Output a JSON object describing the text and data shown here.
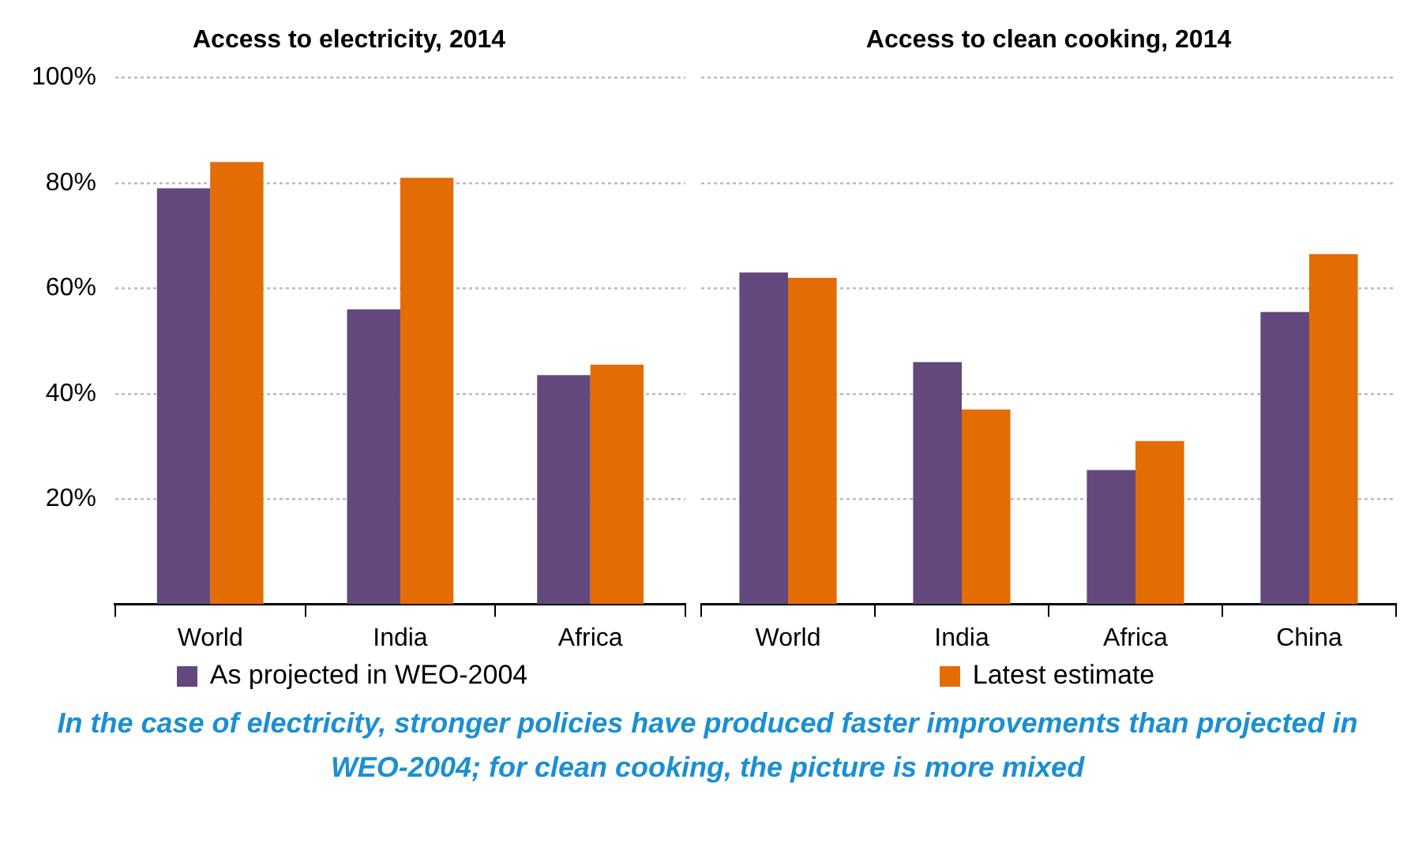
{
  "chart_data": [
    {
      "type": "bar",
      "title": "Access to electricity, 2014",
      "categories": [
        "World",
        "India",
        "Africa"
      ],
      "series": [
        {
          "name": "As projected in WEO-2004",
          "color": "#62487c",
          "values": [
            79,
            56,
            43.5
          ]
        },
        {
          "name": "Latest estimate",
          "color": "#e36c04",
          "values": [
            84,
            81,
            45.5
          ]
        }
      ],
      "ylim": [
        0,
        100
      ],
      "yticks": [
        {
          "value": 20,
          "label": "20%"
        },
        {
          "value": 40,
          "label": "40%"
        },
        {
          "value": 60,
          "label": "60%"
        },
        {
          "value": 80,
          "label": "80%"
        },
        {
          "value": 100,
          "label": "100%"
        }
      ],
      "grid": "y",
      "legend": "bottom"
    },
    {
      "type": "bar",
      "title": "Access to clean cooking, 2014",
      "categories": [
        "World",
        "India",
        "Africa",
        "China"
      ],
      "series": [
        {
          "color": "#62487c",
          "values": [
            63,
            46,
            25.5,
            55.5
          ]
        },
        {
          "color": "#e36c04",
          "values": [
            62,
            37,
            31,
            66.5
          ]
        }
      ],
      "ylim": [
        0,
        100
      ],
      "yticks": [
        20,
        40,
        60,
        80,
        100
      ],
      "grid": "y",
      "tick_labels": "x",
      "annotations": [
        "In the case of electricity, stronger policies have produced faster improvements than projected in WEO-2004; for clean cooking, the picture is more mixed"
      ]
    }
  ]
}
